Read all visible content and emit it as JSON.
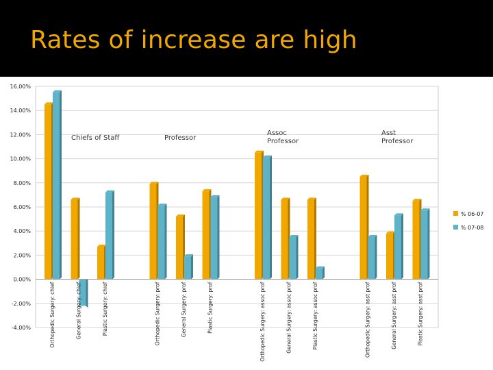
{
  "slide": {
    "title": "Rates of increase are high"
  },
  "chart_data": {
    "type": "bar",
    "ylim": [
      -4,
      16
    ],
    "yticks": [
      16,
      14,
      12,
      10,
      8,
      6,
      4,
      2,
      0,
      -2,
      -4
    ],
    "ytick_labels": [
      "16.00%",
      "14.00%",
      "12.00%",
      "10.00%",
      "8.00%",
      "6.00%",
      "4.00%",
      "2.00%",
      "0.00%",
      "-2.00%",
      "-4.00%"
    ],
    "grid": true,
    "legend_position": "right",
    "categories": [
      "Orthopedic Surgery: chief",
      "General Surgery: chief",
      "Plastic Surgery: chief",
      "Orthopedic Surgery: prof",
      "General Surgery: prof",
      "Plastic Surgery: prof",
      "Orthopedic Surgery: assoc prof",
      "General Surgery: assoc prof",
      "Plastic Surgery: assoc prof",
      "Orthopedic Surgery: asst prof",
      "General Surgery: asst prof",
      "Plastic Surgery: asst prof"
    ],
    "category_groups": [
      {
        "label_lines": [
          "Chiefs of Staff"
        ]
      },
      {
        "label_lines": [
          "Professor"
        ]
      },
      {
        "label_lines": [
          "Assoc",
          "Professor"
        ]
      },
      {
        "label_lines": [
          "Asst",
          "Professor"
        ]
      }
    ],
    "series": [
      {
        "name": "% 06-07",
        "color": "#f0a800",
        "values": [
          14.5,
          6.6,
          2.7,
          7.9,
          5.2,
          7.3,
          10.5,
          6.6,
          6.6,
          8.5,
          3.8,
          6.5
        ]
      },
      {
        "name": "% 07-08",
        "color": "#5fb3c9",
        "values": [
          15.5,
          -2.2,
          7.2,
          6.1,
          1.9,
          6.8,
          10.1,
          3.5,
          0.9,
          3.5,
          5.3,
          5.7
        ]
      }
    ]
  }
}
